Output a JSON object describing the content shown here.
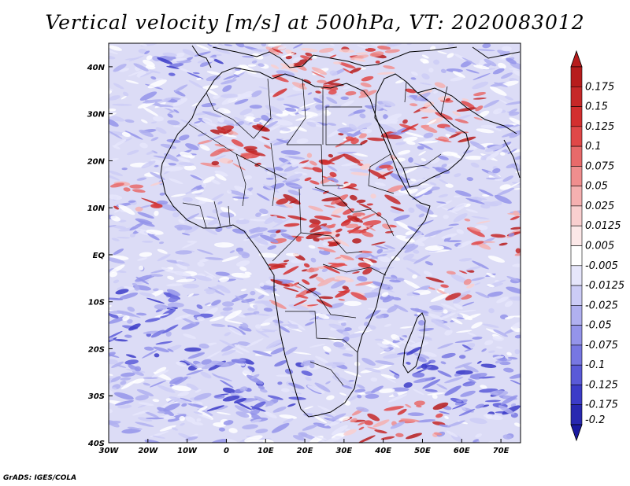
{
  "title": "Vertical velocity [m/s] at 500hPa, VT: 2020083012",
  "credit": "GrADS: IGES/COLA",
  "map": {
    "lon_range": [
      -30,
      75
    ],
    "lat_range": [
      -40,
      45
    ],
    "x_ticks": [
      {
        "lon": -30,
        "label": "30W"
      },
      {
        "lon": -20,
        "label": "20W"
      },
      {
        "lon": -10,
        "label": "10W"
      },
      {
        "lon": 0,
        "label": "0"
      },
      {
        "lon": 10,
        "label": "10E"
      },
      {
        "lon": 20,
        "label": "20E"
      },
      {
        "lon": 30,
        "label": "30E"
      },
      {
        "lon": 40,
        "label": "40E"
      },
      {
        "lon": 50,
        "label": "50E"
      },
      {
        "lon": 60,
        "label": "60E"
      },
      {
        "lon": 70,
        "label": "70E"
      }
    ],
    "y_ticks": [
      {
        "lat": 40,
        "label": "40N"
      },
      {
        "lat": 30,
        "label": "30N"
      },
      {
        "lat": 20,
        "label": "20N"
      },
      {
        "lat": 10,
        "label": "10N"
      },
      {
        "lat": 0,
        "label": "EQ"
      },
      {
        "lat": -10,
        "label": "10S"
      },
      {
        "lat": -20,
        "label": "20S"
      },
      {
        "lat": -30,
        "label": "30S"
      },
      {
        "lat": -40,
        "label": "40S"
      }
    ]
  },
  "colorbar": {
    "levels": [
      {
        "label": "0.175",
        "color": "#b71c1c"
      },
      {
        "label": "0.15",
        "color": "#c62828"
      },
      {
        "label": "0.125",
        "color": "#d32f2f"
      },
      {
        "label": "0.1",
        "color": "#e04848"
      },
      {
        "label": "0.075",
        "color": "#e86a6a"
      },
      {
        "label": "0.05",
        "color": "#f08e8e"
      },
      {
        "label": "0.025",
        "color": "#f5b0b0"
      },
      {
        "label": "0.0125",
        "color": "#f9cfcf"
      },
      {
        "label": "0.005",
        "color": "#fce8e8"
      },
      {
        "label": "-0.005",
        "color": "#ffffff"
      },
      {
        "label": "-0.0125",
        "color": "#e6e6fb"
      },
      {
        "label": "-0.025",
        "color": "#ccccf6"
      },
      {
        "label": "-0.05",
        "color": "#b0b0f0"
      },
      {
        "label": "-0.075",
        "color": "#9494ea"
      },
      {
        "label": "-0.1",
        "color": "#7777e2"
      },
      {
        "label": "-0.125",
        "color": "#5a5ad8"
      },
      {
        "label": "-0.175",
        "color": "#3c3cc8"
      },
      {
        "label": "-0.2",
        "color": "#2828b0"
      }
    ],
    "low_arrow_color": "#1a1aa0"
  }
}
